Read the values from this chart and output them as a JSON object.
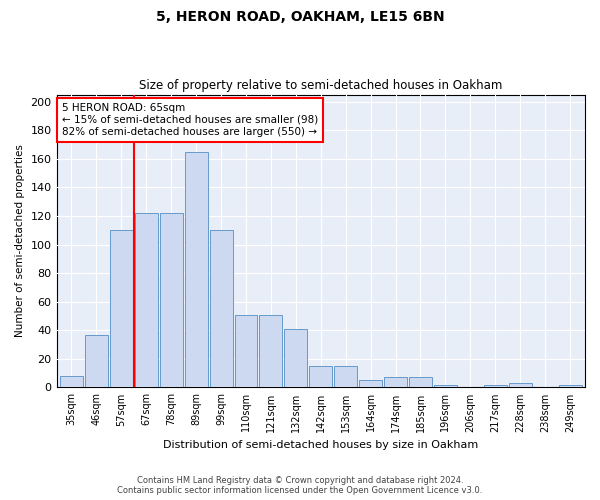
{
  "title1": "5, HERON ROAD, OAKHAM, LE15 6BN",
  "title2": "Size of property relative to semi-detached houses in Oakham",
  "xlabel": "Distribution of semi-detached houses by size in Oakham",
  "ylabel": "Number of semi-detached properties",
  "categories": [
    "35sqm",
    "46sqm",
    "57sqm",
    "67sqm",
    "78sqm",
    "89sqm",
    "99sqm",
    "110sqm",
    "121sqm",
    "132sqm",
    "142sqm",
    "153sqm",
    "164sqm",
    "174sqm",
    "185sqm",
    "196sqm",
    "206sqm",
    "217sqm",
    "228sqm",
    "238sqm",
    "249sqm"
  ],
  "values": [
    8,
    37,
    110,
    122,
    122,
    165,
    110,
    51,
    51,
    41,
    15,
    15,
    5,
    7,
    7,
    2,
    0,
    2,
    3,
    0,
    2
  ],
  "bar_color": "#ccd9f0",
  "bar_edge_color": "#6699cc",
  "red_line_x": 2.5,
  "annotation_title": "5 HERON ROAD: 65sqm",
  "annotation_line1": "← 15% of semi-detached houses are smaller (98)",
  "annotation_line2": "82% of semi-detached houses are larger (550) →",
  "ylim": [
    0,
    205
  ],
  "yticks": [
    0,
    20,
    40,
    60,
    80,
    100,
    120,
    140,
    160,
    180,
    200
  ],
  "footer1": "Contains HM Land Registry data © Crown copyright and database right 2024.",
  "footer2": "Contains public sector information licensed under the Open Government Licence v3.0.",
  "bg_color": "#e8eef8"
}
